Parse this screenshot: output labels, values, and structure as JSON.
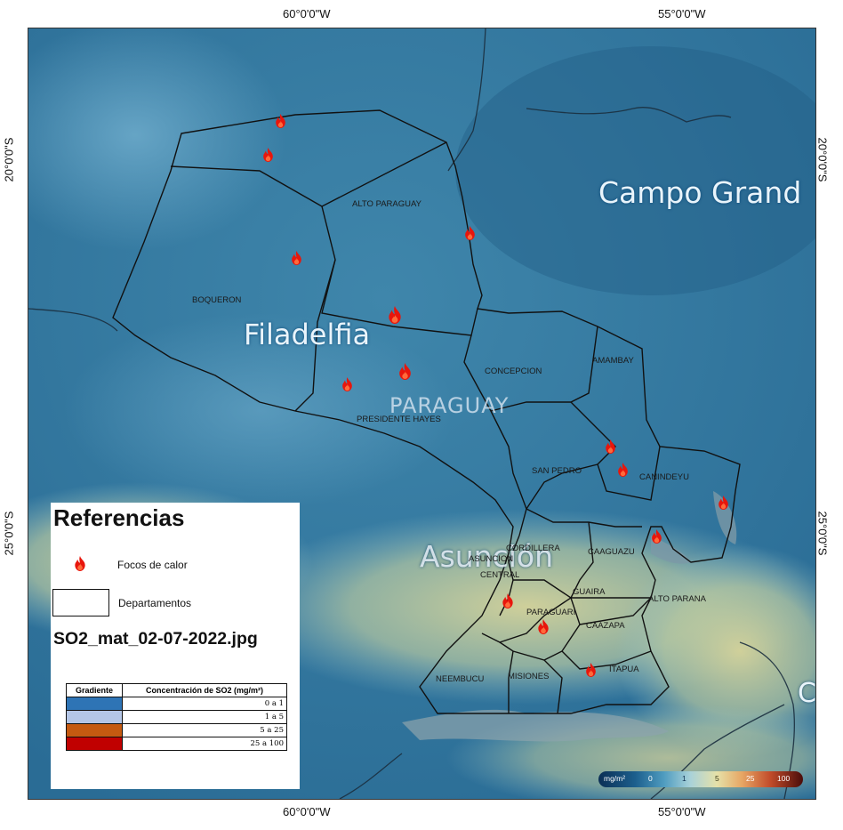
{
  "coordinates": {
    "top": [
      "60°0'0\"W",
      "55°0'0\"W"
    ],
    "bottom": [
      "60°0'0\"W",
      "55°0'0\"W"
    ],
    "left": [
      "20°0'0\"S",
      "25°0'0\"S"
    ],
    "right": [
      "20°0'0\"S",
      "25°0'0\"S"
    ]
  },
  "basemap_labels": {
    "campo_grande": "Campo Grand",
    "filadelfia": "Filadelfia",
    "paraguay": "PARAGUAY",
    "asuncion": "Asunción",
    "edge_c": "C"
  },
  "departments": {
    "alto_paraguay": "ALTO PARAGUAY",
    "boqueron": "BOQUERON",
    "concepcion": "CONCEPCION",
    "amambay": "AMAMBAY",
    "presidente_hayes": "PRESIDENTE HAYES",
    "san_pedro": "SAN PEDRO",
    "canindeyu": "CANINDEYU",
    "cordillera": "CORDILLERA",
    "asuncion": "ASUNCION",
    "central": "CENTRAL",
    "caaguazu": "CAAGUAZU",
    "guaira": "GUAIRA",
    "alto_parana": "ALTO PARANA",
    "paraguari": "PARAGUARI",
    "caazapa": "CAAZAPA",
    "neembucu": "NEEMBUCU",
    "misiones": "MISIONES",
    "itapua": "ITAPUA"
  },
  "fire_hotspots_count": 15,
  "legend": {
    "title": "Referencias",
    "fire_label": "Focos de calor",
    "dept_label": "Departamentos",
    "image_name": "SO2_mat_02-07-2022.jpg",
    "table": {
      "header_gradient": "Gradiente",
      "header_concentration": "Concentración de SO2 (mg/m²)",
      "rows": [
        {
          "color": "#2e74b5",
          "range": "0 a 1"
        },
        {
          "color": "#b4c6e7",
          "range": "1 a 5"
        },
        {
          "color": "#c55a11",
          "range": "5 a 25"
        },
        {
          "color": "#c00000",
          "range": "25 a 100"
        }
      ]
    }
  },
  "scale_bar": {
    "unit": "mg/m²",
    "ticks": [
      "0",
      "1",
      "5",
      "25",
      "100"
    ]
  }
}
